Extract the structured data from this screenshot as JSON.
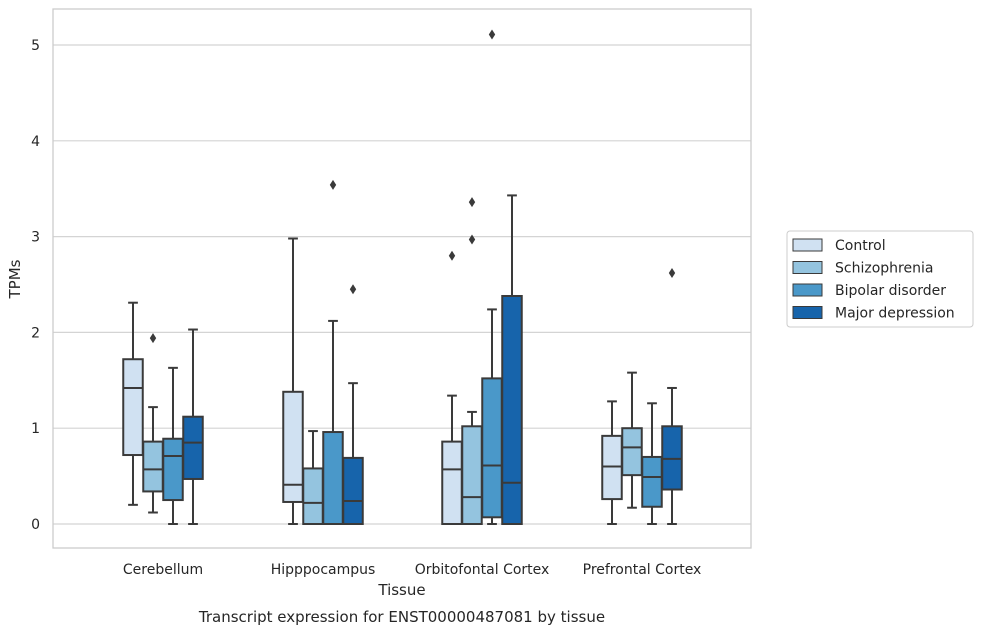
{
  "caption": "Transcript expression for ENST00000487081 by tissue",
  "chart_data": {
    "type": "box",
    "xlabel": "Tissue",
    "ylabel": "TPMs",
    "ylim": [
      -0.25,
      5.38
    ],
    "yticks": [
      0,
      1,
      2,
      3,
      4,
      5
    ],
    "grid": true,
    "legend_position": "right",
    "categories": [
      "Cerebellum",
      "Hipppocampus",
      "Orbitofontal Cortex",
      "Prefrontal Cortex"
    ],
    "series": [
      {
        "name": "Control",
        "color": "#d0e1f2",
        "boxes": [
          {
            "whisker_low": 0.2,
            "q1": 0.72,
            "median": 1.42,
            "q3": 1.72,
            "whisker_high": 2.31,
            "outliers": []
          },
          {
            "whisker_low": 0.0,
            "q1": 0.23,
            "median": 0.41,
            "q3": 1.38,
            "whisker_high": 2.98,
            "outliers": []
          },
          {
            "whisker_low": 0.0,
            "q1": 0.0,
            "median": 0.57,
            "q3": 0.86,
            "whisker_high": 1.34,
            "outliers": [
              2.8
            ]
          },
          {
            "whisker_low": 0.0,
            "q1": 0.26,
            "median": 0.6,
            "q3": 0.92,
            "whisker_high": 1.28,
            "outliers": []
          }
        ]
      },
      {
        "name": "Schizophrenia",
        "color": "#94c4df",
        "boxes": [
          {
            "whisker_low": 0.12,
            "q1": 0.34,
            "median": 0.57,
            "q3": 0.86,
            "whisker_high": 1.22,
            "outliers": [
              1.94
            ]
          },
          {
            "whisker_low": 0.0,
            "q1": 0.0,
            "median": 0.22,
            "q3": 0.58,
            "whisker_high": 0.97,
            "outliers": []
          },
          {
            "whisker_low": 0.0,
            "q1": 0.0,
            "median": 0.28,
            "q3": 1.02,
            "whisker_high": 1.17,
            "outliers": [
              2.97,
              3.36
            ]
          },
          {
            "whisker_low": 0.17,
            "q1": 0.51,
            "median": 0.8,
            "q3": 1.0,
            "whisker_high": 1.58,
            "outliers": []
          }
        ]
      },
      {
        "name": "Bipolar disorder",
        "color": "#4a98c9",
        "boxes": [
          {
            "whisker_low": 0.0,
            "q1": 0.25,
            "median": 0.71,
            "q3": 0.89,
            "whisker_high": 1.63,
            "outliers": []
          },
          {
            "whisker_low": 0.0,
            "q1": 0.0,
            "median": 0.0,
            "q3": 0.96,
            "whisker_high": 2.12,
            "outliers": [
              3.54
            ]
          },
          {
            "whisker_low": 0.0,
            "q1": 0.07,
            "median": 0.61,
            "q3": 1.52,
            "whisker_high": 2.24,
            "outliers": [
              5.11
            ]
          },
          {
            "whisker_low": 0.0,
            "q1": 0.18,
            "median": 0.49,
            "q3": 0.7,
            "whisker_high": 1.26,
            "outliers": []
          }
        ]
      },
      {
        "name": "Major depression",
        "color": "#1764ab",
        "boxes": [
          {
            "whisker_low": 0.0,
            "q1": 0.47,
            "median": 0.85,
            "q3": 1.12,
            "whisker_high": 2.03,
            "outliers": []
          },
          {
            "whisker_low": 0.0,
            "q1": 0.0,
            "median": 0.24,
            "q3": 0.69,
            "whisker_high": 1.47,
            "outliers": [
              2.45
            ]
          },
          {
            "whisker_low": 0.0,
            "q1": 0.0,
            "median": 0.43,
            "q3": 2.38,
            "whisker_high": 3.43,
            "outliers": []
          },
          {
            "whisker_low": 0.0,
            "q1": 0.36,
            "median": 0.68,
            "q3": 1.02,
            "whisker_high": 1.42,
            "outliers": [
              2.62
            ]
          }
        ]
      }
    ]
  }
}
